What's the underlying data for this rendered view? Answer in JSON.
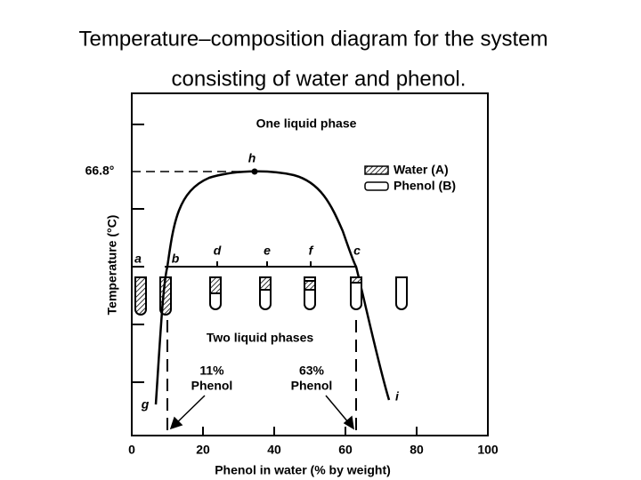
{
  "header": {
    "title_lines": [
      "Temperature–composition diagram for the system",
      "consisting of water and phenol."
    ]
  },
  "diagram": {
    "region_upper": "One liquid phase",
    "region_lower": "Two liquid phases",
    "critical_temperature": "66.8°",
    "points": [
      "a",
      "b",
      "d",
      "e",
      "f",
      "c",
      "h",
      "g",
      "i"
    ],
    "legend": [
      "Water (A)",
      "Phenol (B)"
    ],
    "left_composition": [
      "11%",
      "Phenol"
    ],
    "right_composition": [
      "63%",
      "Phenol"
    ],
    "y_axis_label": "Temperature (°C)",
    "x_axis_label": "Phenol in water (% by weight)",
    "xlim": [
      0,
      100
    ],
    "xticks": [
      0,
      20,
      40,
      60,
      80,
      100
    ]
  }
}
